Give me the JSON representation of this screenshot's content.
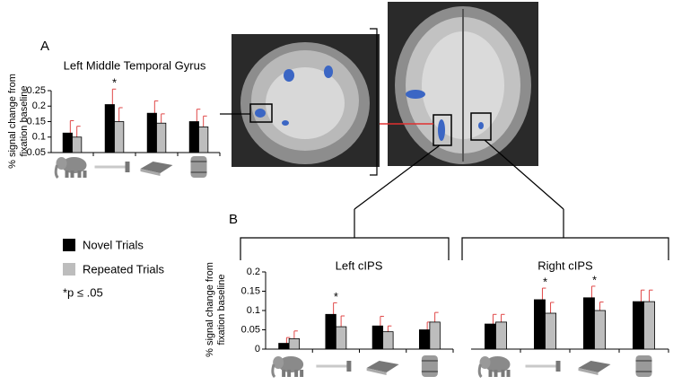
{
  "panel_labels": [
    "A",
    "B"
  ],
  "legend": {
    "items": [
      {
        "label": "Novel Trials",
        "color": "#000000"
      },
      {
        "label": "Repeated Trials",
        "color": "#bdbdbd"
      }
    ],
    "note": "*p ≤ .05"
  },
  "chart_data": [
    {
      "type": "bar",
      "title": "Left Middle Temporal Gyrus",
      "ylabel": [
        "% signal change from",
        "fixation baseline"
      ],
      "categories": [
        null,
        null,
        null,
        null
      ],
      "series": [
        {
          "color": "#000000",
          "values": [
            0.113,
            0.205,
            0.177,
            0.15
          ],
          "errors": [
            0.04,
            0.05,
            0.04,
            0.04
          ]
        },
        {
          "color": "#bdbdbd",
          "values": [
            0.1,
            0.15,
            0.145,
            0.133
          ],
          "errors": [
            0.035,
            0.045,
            0.03,
            0.035
          ]
        }
      ],
      "markers": [
        null,
        "*",
        null,
        null
      ],
      "error_color": "#e04848",
      "ylim": [
        0.05,
        0.25
      ],
      "yticks": [
        0.05,
        0.1,
        0.15,
        0.2,
        0.25
      ]
    },
    {
      "type": "bar",
      "title": "Left cIPS",
      "ylabel": [
        "% signal change from",
        "fixation baseline"
      ],
      "categories": [
        null,
        null,
        null,
        null
      ],
      "series": [
        {
          "color": "#000000",
          "values": [
            0.015,
            0.09,
            0.06,
            0.05
          ],
          "errors": [
            0.015,
            0.03,
            0.025,
            0.02
          ]
        },
        {
          "color": "#bdbdbd",
          "values": [
            0.027,
            0.058,
            0.045,
            0.07
          ],
          "errors": [
            0.02,
            0.028,
            0.015,
            0.025
          ]
        }
      ],
      "markers": [
        null,
        "*",
        null,
        null
      ],
      "error_color": "#e04848",
      "ylim": [
        0,
        0.2
      ],
      "yticks": [
        0,
        0.05,
        0.1,
        0.15,
        0.2
      ]
    },
    {
      "type": "bar",
      "title": "Right cIPS",
      "categories": [
        null,
        null,
        null,
        null
      ],
      "series": [
        {
          "color": "#000000",
          "values": [
            0.065,
            0.128,
            0.133,
            0.123
          ],
          "errors": [
            0.025,
            0.03,
            0.03,
            0.03
          ]
        },
        {
          "color": "#bdbdbd",
          "values": [
            0.07,
            0.093,
            0.1,
            0.123
          ],
          "errors": [
            0.02,
            0.028,
            0.022,
            0.03
          ]
        }
      ],
      "markers": [
        null,
        "*",
        "*",
        null
      ],
      "error_color": "#e04848",
      "ylim": [
        0,
        0.2
      ]
    }
  ]
}
